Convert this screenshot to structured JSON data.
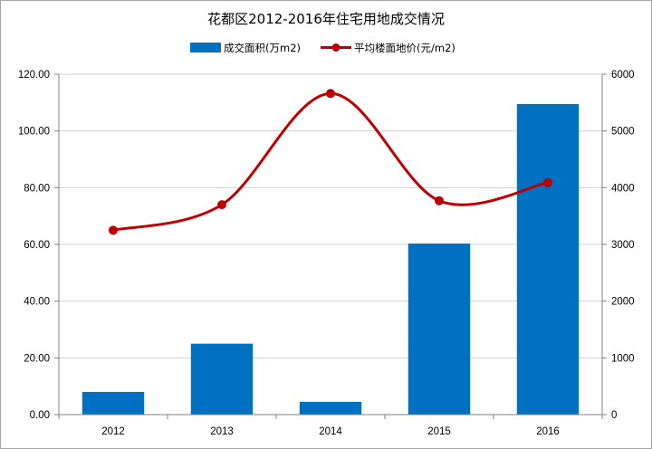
{
  "chart_data": {
    "type": "bar",
    "title": "花都区2012-2016年住宅用地成交情况",
    "categories": [
      "2012",
      "2013",
      "2014",
      "2015",
      "2016"
    ],
    "y_left": {
      "range": [
        0,
        120
      ],
      "ticks": [
        "0.00",
        "20.00",
        "40.00",
        "60.00",
        "80.00",
        "100.00",
        "120.00"
      ]
    },
    "y_right": {
      "range": [
        0,
        6000
      ],
      "ticks": [
        "0",
        "1000",
        "2000",
        "3000",
        "4000",
        "5000",
        "6000"
      ]
    },
    "series": [
      {
        "name": "成交面积(万m2)",
        "type": "bar",
        "axis": "left",
        "color": "#0070c0",
        "values": [
          8.0,
          25.0,
          4.5,
          60.3,
          109.5
        ]
      },
      {
        "name": "平均楼面地价(元/m2)",
        "type": "line",
        "axis": "right",
        "color": "#c00000",
        "smooth": true,
        "values": [
          3250,
          3700,
          5660,
          3770,
          4090
        ]
      }
    ],
    "grid": true,
    "legend_position": "top"
  }
}
